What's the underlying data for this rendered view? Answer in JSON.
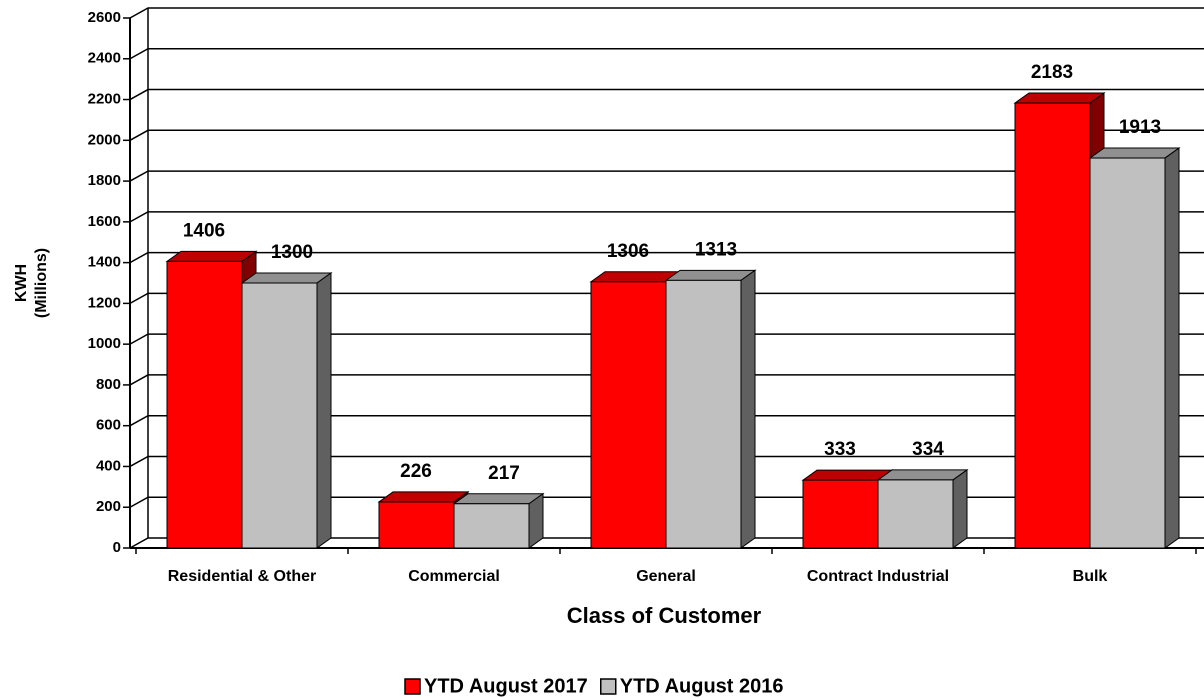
{
  "chart_data": {
    "type": "bar3d",
    "x_label": "Class of Customer",
    "y_label": [
      "KWH",
      "(Millions)"
    ],
    "categories": [
      "Residential & Other",
      "Commercial",
      "General",
      "Contract Industrial",
      "Bulk"
    ],
    "series": [
      {
        "name": "YTD August 2017",
        "color": "#ff0000",
        "values": [
          1406,
          226,
          1306,
          333,
          2183
        ]
      },
      {
        "name": "YTD August 2016",
        "color": "#c0c0c0",
        "values": [
          1300,
          217,
          1313,
          334,
          1913
        ]
      }
    ],
    "ylim": [
      0,
      2600
    ],
    "yticks": [
      0,
      200,
      400,
      600,
      800,
      1000,
      1200,
      1400,
      1600,
      1800,
      2000,
      2200,
      2400,
      2600
    ],
    "grid": true,
    "legend": "bottom"
  }
}
